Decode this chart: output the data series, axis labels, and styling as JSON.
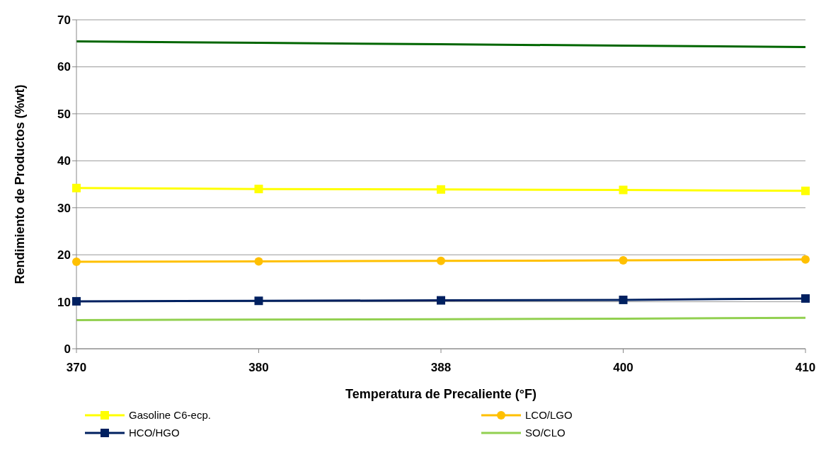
{
  "chart_data": {
    "type": "line",
    "xlabel": "Temperatura de Precaliente (°F)",
    "ylabel": "Rendimiento de Productos (%wt)",
    "categories": [
      "370",
      "380",
      "388",
      "400",
      "410"
    ],
    "ylim": [
      0,
      70
    ],
    "yticks": [
      0,
      10,
      20,
      30,
      40,
      50,
      60,
      70
    ],
    "grid": "y",
    "legend": "bottom",
    "series": [
      {
        "color": "#006600",
        "marker": "none",
        "values": [
          65.4,
          65.1,
          64.8,
          64.5,
          64.2
        ]
      },
      {
        "name": "Gasoline C6-ecp.",
        "color": "#ffff00",
        "marker": "square",
        "values": [
          34.2,
          34.0,
          33.9,
          33.8,
          33.6
        ]
      },
      {
        "name": "LCO/LGO",
        "color": "#ffc000",
        "marker": "circle",
        "values": [
          18.5,
          18.6,
          18.7,
          18.8,
          19.0
        ]
      },
      {
        "name": "HCO/HGO",
        "color": "#002060",
        "marker": "square",
        "values": [
          10.1,
          10.2,
          10.3,
          10.4,
          10.7
        ]
      },
      {
        "name": "SO/CLO",
        "color": "#92d050",
        "marker": "none",
        "values": [
          6.1,
          6.2,
          6.3,
          6.4,
          6.6
        ]
      }
    ]
  }
}
